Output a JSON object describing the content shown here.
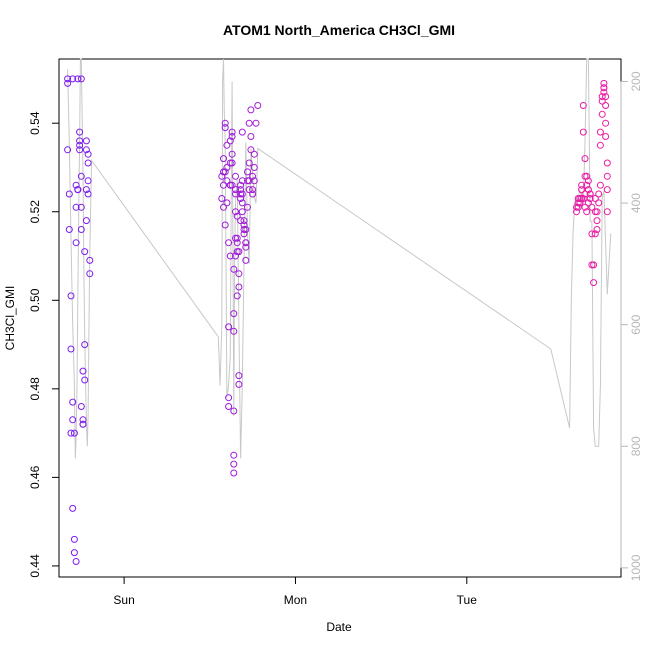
{
  "chart_data": {
    "type": "scatter",
    "title": "ATOM1 North_America CH3Cl_GMI",
    "xlabel": "Date",
    "ylabel": "CH3Cl_GMI",
    "xlim": [
      -0.38,
      2.9
    ],
    "ylim": [
      0.4375,
      0.5545
    ],
    "x_ticks": [
      {
        "value": 0,
        "label": "Sun"
      },
      {
        "value": 1,
        "label": "Mon"
      },
      {
        "value": 2,
        "label": "Tue"
      }
    ],
    "y_ticks": [
      0.44,
      0.46,
      0.48,
      0.5,
      0.52,
      0.54
    ],
    "y2lim": [
      1015,
      163
    ],
    "y2_ticks": [
      200,
      400,
      600,
      800,
      1000
    ],
    "grid": false,
    "point_color_start": "#7a1cf0",
    "point_color_end": "#f01ca0",
    "line_color": "#c8c8c8",
    "series": [
      {
        "kind": "points",
        "x": [
          -0.33,
          -0.33,
          -0.33,
          -0.32,
          -0.32,
          -0.31,
          -0.31,
          -0.31,
          -0.3,
          -0.3,
          -0.3,
          -0.3,
          -0.29,
          -0.29,
          -0.29,
          -0.28,
          -0.28,
          -0.28,
          -0.28,
          -0.27,
          -0.27,
          -0.27,
          -0.27,
          -0.26,
          -0.26,
          -0.26,
          -0.26,
          -0.25,
          -0.25,
          -0.25,
          -0.25,
          -0.25,
          -0.24,
          -0.24,
          -0.24,
          -0.24,
          -0.23,
          -0.23,
          -0.23,
          -0.22,
          -0.22,
          -0.22,
          -0.22,
          -0.21,
          -0.21,
          -0.21,
          -0.21,
          -0.2,
          -0.2,
          0.57,
          0.57,
          0.58,
          0.58,
          0.58,
          0.58,
          0.59,
          0.59,
          0.59,
          0.59,
          0.6,
          0.6,
          0.6,
          0.6,
          0.61,
          0.61,
          0.61,
          0.61,
          0.62,
          0.62,
          0.62,
          0.62,
          0.62,
          0.63,
          0.63,
          0.63,
          0.63,
          0.63,
          0.64,
          0.64,
          0.64,
          0.64,
          0.64,
          0.64,
          0.64,
          0.65,
          0.65,
          0.65,
          0.65,
          0.65,
          0.65,
          0.66,
          0.66,
          0.66,
          0.66,
          0.66,
          0.67,
          0.67,
          0.67,
          0.67,
          0.67,
          0.68,
          0.68,
          0.68,
          0.68,
          0.68,
          0.69,
          0.69,
          0.69,
          0.69,
          0.69,
          0.7,
          0.7,
          0.7,
          0.7,
          0.71,
          0.71,
          0.71,
          0.71,
          0.71,
          0.72,
          0.72,
          0.72,
          0.73,
          0.73,
          0.73,
          0.73,
          0.74,
          0.74,
          0.74,
          0.75,
          0.75,
          0.75,
          0.76,
          0.76,
          0.76,
          0.77,
          0.78,
          2.64,
          2.64,
          2.65,
          2.65,
          2.65,
          2.66,
          2.66,
          2.66,
          2.67,
          2.67,
          2.67,
          2.68,
          2.68,
          2.68,
          2.69,
          2.69,
          2.69,
          2.69,
          2.7,
          2.7,
          2.7,
          2.71,
          2.71,
          2.71,
          2.72,
          2.72,
          2.72,
          2.73,
          2.73,
          2.73,
          2.74,
          2.74,
          2.75,
          2.75,
          2.75,
          2.76,
          2.76,
          2.76,
          2.77,
          2.77,
          2.78,
          2.78,
          2.78,
          2.79,
          2.79,
          2.79,
          2.8,
          2.8,
          2.8,
          2.8,
          2.81,
          2.81,
          2.81,
          2.81,
          2.82,
          2.82,
          2.82,
          2.82
        ],
        "y": [
          0.55,
          0.549,
          0.534,
          0.524,
          0.516,
          0.501,
          0.489,
          0.47,
          0.55,
          0.477,
          0.473,
          0.453,
          0.47,
          0.446,
          0.443,
          0.441,
          0.521,
          0.513,
          0.526,
          0.525,
          0.525,
          0.55,
          0.525,
          0.538,
          0.536,
          0.535,
          0.534,
          0.55,
          0.528,
          0.521,
          0.516,
          0.476,
          0.473,
          0.472,
          0.472,
          0.484,
          0.482,
          0.49,
          0.511,
          0.518,
          0.534,
          0.536,
          0.525,
          0.524,
          0.527,
          0.531,
          0.533,
          0.509,
          0.506,
          0.523,
          0.528,
          0.529,
          0.532,
          0.526,
          0.521,
          0.517,
          0.529,
          0.54,
          0.539,
          0.535,
          0.53,
          0.527,
          0.522,
          0.478,
          0.476,
          0.494,
          0.513,
          0.51,
          0.526,
          0.526,
          0.531,
          0.536,
          0.538,
          0.537,
          0.533,
          0.531,
          0.526,
          0.461,
          0.463,
          0.465,
          0.475,
          0.497,
          0.493,
          0.507,
          0.51,
          0.514,
          0.52,
          0.525,
          0.528,
          0.524,
          0.519,
          0.514,
          0.513,
          0.511,
          0.501,
          0.483,
          0.481,
          0.503,
          0.506,
          0.511,
          0.518,
          0.523,
          0.525,
          0.526,
          0.524,
          0.527,
          0.538,
          0.524,
          0.522,
          0.52,
          0.518,
          0.517,
          0.516,
          0.515,
          0.513,
          0.512,
          0.509,
          0.516,
          0.513,
          0.527,
          0.529,
          0.521,
          0.525,
          0.527,
          0.531,
          0.54,
          0.543,
          0.537,
          0.534,
          0.528,
          0.524,
          0.525,
          0.527,
          0.53,
          0.533,
          0.54,
          0.544,
          0.52,
          0.521,
          0.522,
          0.523,
          0.521,
          0.522,
          0.523,
          0.522,
          0.523,
          0.525,
          0.526,
          0.523,
          0.538,
          0.544,
          0.532,
          0.528,
          0.524,
          0.521,
          0.52,
          0.526,
          0.528,
          0.522,
          0.525,
          0.527,
          0.524,
          0.523,
          0.524,
          0.521,
          0.515,
          0.508,
          0.504,
          0.508,
          0.523,
          0.52,
          0.515,
          0.516,
          0.518,
          0.52,
          0.522,
          0.524,
          0.526,
          0.535,
          0.538,
          0.542,
          0.545,
          0.546,
          0.547,
          0.548,
          0.549,
          0.548,
          0.546,
          0.544,
          0.54,
          0.537,
          0.531,
          0.528,
          0.525,
          0.52
        ]
      },
      {
        "kind": "line",
        "x": [
          -0.33,
          -0.32,
          -0.31,
          -0.3,
          -0.29,
          -0.285,
          -0.28,
          -0.275,
          -0.27,
          -0.265,
          -0.26,
          -0.255,
          -0.25,
          -0.245,
          -0.24,
          -0.235,
          -0.23,
          -0.225,
          -0.22,
          -0.215,
          -0.21,
          -0.205,
          -0.2,
          -0.19,
          0.55,
          0.56,
          0.57,
          0.575,
          0.58,
          0.585,
          0.59,
          0.6,
          0.61,
          0.62,
          0.625,
          0.63,
          0.64,
          0.645,
          0.65,
          0.66,
          0.67,
          0.68,
          0.69,
          0.7,
          0.71,
          0.72,
          0.73,
          0.74,
          0.76,
          0.77,
          0.78,
          2.49,
          2.6,
          2.61,
          2.62,
          2.63,
          2.64,
          2.65,
          2.66,
          2.67,
          2.68,
          2.69,
          2.7,
          2.71,
          2.72,
          2.73,
          2.74,
          2.75,
          2.76,
          2.77,
          2.78,
          2.79,
          2.8,
          2.82,
          2.84
        ],
        "y2": [
          180,
          300,
          460,
          600,
          700,
          820,
          790,
          700,
          560,
          420,
          300,
          163,
          163,
          250,
          350,
          500,
          620,
          700,
          760,
          800,
          750,
          600,
          480,
          330,
          620,
          700,
          600,
          200,
          163,
          250,
          300,
          720,
          700,
          650,
          400,
          200,
          750,
          500,
          400,
          360,
          600,
          820,
          700,
          500,
          300,
          450,
          500,
          310,
          390,
          400,
          310,
          640,
          770,
          560,
          450,
          400,
          390,
          390,
          380,
          390,
          400,
          300,
          163,
          163,
          430,
          430,
          770,
          800,
          800,
          800,
          700,
          390,
          380,
          550,
          450
        ]
      }
    ]
  }
}
